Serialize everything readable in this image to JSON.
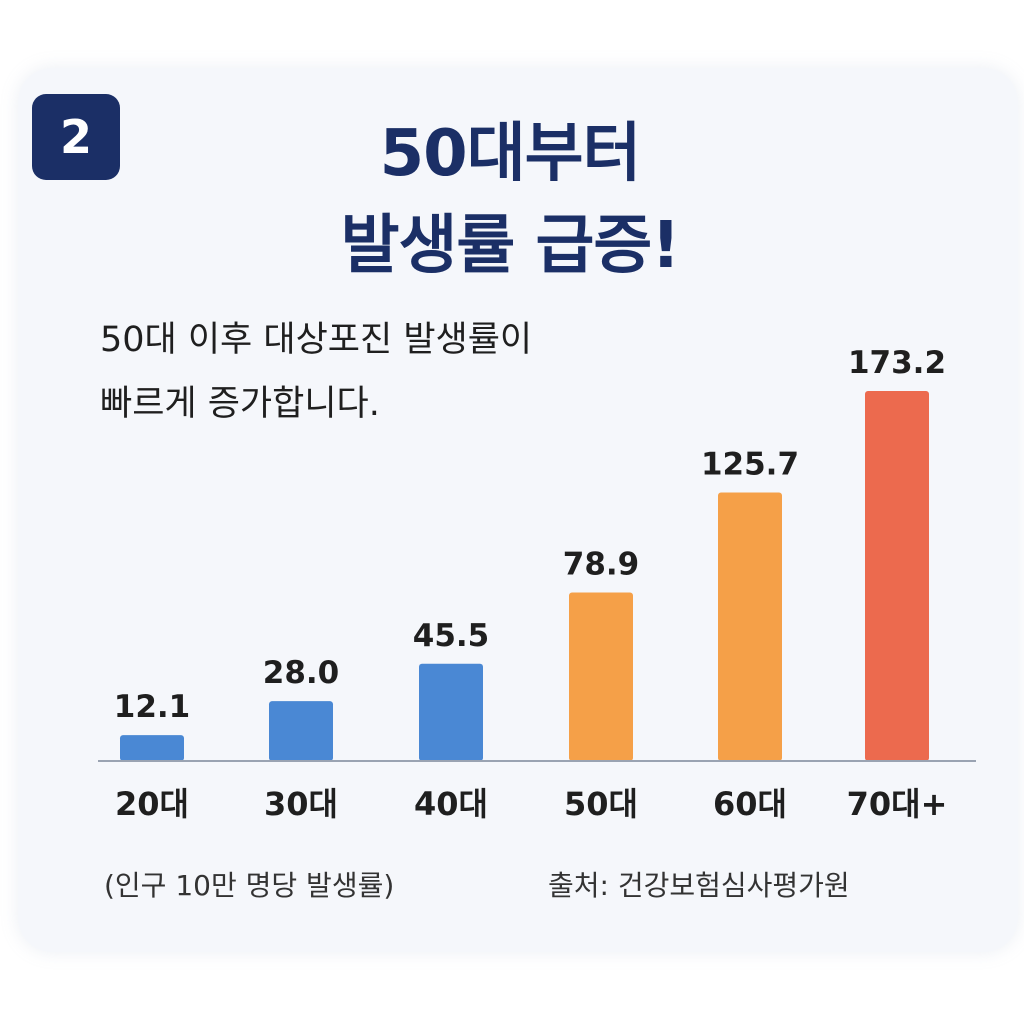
{
  "badge": "2",
  "title_line1": "50대부터",
  "title_line2": "발생률 급증!",
  "description_line1": "50대 이후 대상포진 발생률이",
  "description_line2": "빠르게 증가합니다.",
  "footnote_unit": "(인구 10만 명당 발생률)",
  "footnote_source": "출처: 건강보험심사평가원",
  "colors": {
    "blue": "#4a88d4",
    "orange": "#f5a048",
    "red": "#ec6a4e",
    "title": "#1b2f66"
  },
  "chart_data": {
    "type": "bar",
    "categories": [
      "20대",
      "30대",
      "40대",
      "50대",
      "60대",
      "70대+"
    ],
    "values": [
      12.1,
      28.0,
      45.5,
      78.9,
      125.7,
      173.2
    ],
    "value_labels": [
      "12.1",
      "28.0",
      "45.5",
      "78.9",
      "125.7",
      "173.2"
    ],
    "bar_colors": [
      "#4a88d4",
      "#4a88d4",
      "#4a88d4",
      "#f5a048",
      "#f5a048",
      "#ec6a4e"
    ],
    "title": "50대부터 발생률 급증!",
    "xlabel": "",
    "ylabel": "",
    "ylim": [
      0,
      173.2
    ],
    "grid": false,
    "legend": "none"
  }
}
